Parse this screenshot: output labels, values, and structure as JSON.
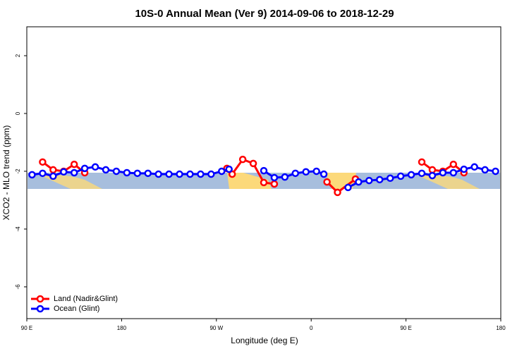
{
  "chart_data": {
    "type": "line",
    "title": "10S-0 Annual Mean (Ver 9)   2014-09-06 to 2018-12-29",
    "xlabel": "Longitude (deg E)",
    "ylabel": "XCO2 - MLO trend (ppm)",
    "xlim": [
      90,
      540
    ],
    "xticks": [
      {
        "value": 90,
        "label": "90 E"
      },
      {
        "value": 180,
        "label": "180"
      },
      {
        "value": 270,
        "label": "90 W"
      },
      {
        "value": 360,
        "label": "0"
      },
      {
        "value": 450,
        "label": "90 E"
      },
      {
        "value": 540,
        "label": "180"
      }
    ],
    "ylim": [
      -7.1,
      3
    ],
    "yticks": [
      2,
      0,
      -2,
      -4,
      -6
    ],
    "legend": "bottom-left",
    "series": [
      {
        "name": "Land (Nadir&Glint)",
        "color": "#ff0000",
        "x": [
          105,
          115,
          125,
          135,
          145,
          null,
          280,
          285,
          295,
          305,
          315,
          325,
          null,
          375,
          385,
          402,
          null,
          465,
          475,
          485,
          495,
          505
        ],
        "values": [
          -1.68,
          -1.95,
          -2.0,
          -1.76,
          -2.05,
          null,
          -1.9,
          -2.1,
          -1.59,
          -1.73,
          -2.39,
          -2.44,
          null,
          -2.37,
          -2.73,
          -2.27,
          null,
          -1.68,
          -1.95,
          -2.0,
          -1.76,
          -2.05
        ]
      },
      {
        "name": "Ocean (Glint)",
        "color": "#0000ff",
        "x": [
          95,
          105,
          115,
          125,
          135,
          145,
          155,
          165,
          175,
          185,
          195,
          205,
          215,
          225,
          235,
          245,
          255,
          265,
          275,
          282,
          null,
          315,
          325,
          335,
          345,
          355,
          365,
          372,
          null,
          395,
          405,
          415,
          425,
          435,
          445,
          455,
          465,
          475,
          485,
          495,
          505,
          515,
          525,
          535
        ],
        "values": [
          -2.12,
          -2.07,
          -2.17,
          -2.02,
          -2.05,
          -1.9,
          -1.85,
          -1.95,
          -2.0,
          -2.05,
          -2.07,
          -2.07,
          -2.1,
          -2.1,
          -2.1,
          -2.1,
          -2.1,
          -2.1,
          -2.0,
          -1.93,
          null,
          -1.98,
          -2.22,
          -2.2,
          -2.07,
          -2.02,
          -2.0,
          -2.1,
          null,
          -2.56,
          -2.37,
          -2.32,
          -2.29,
          -2.24,
          -2.17,
          -2.12,
          -2.07,
          -2.15,
          -2.05,
          -2.05,
          -1.93,
          -1.85,
          -1.95,
          -2.0
        ]
      }
    ]
  }
}
